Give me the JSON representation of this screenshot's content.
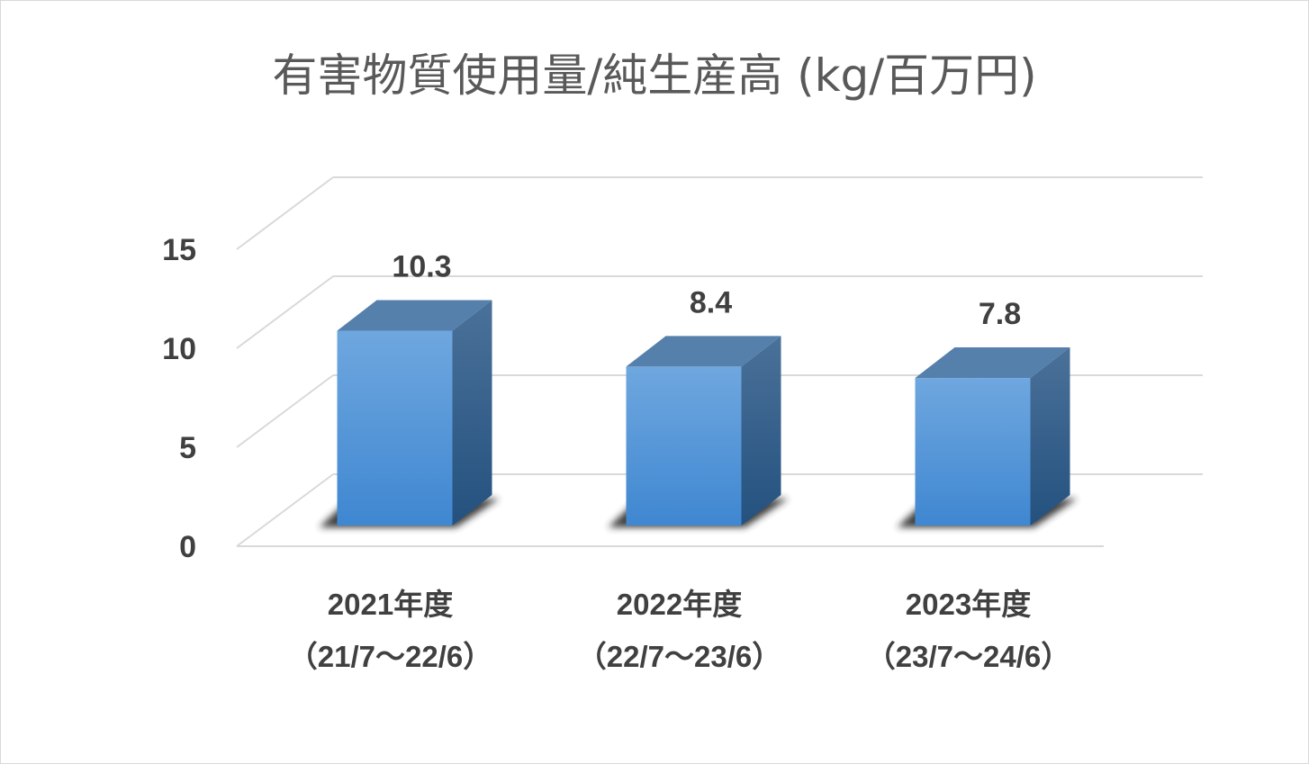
{
  "chart_data": {
    "type": "bar",
    "title": "有害物質使用量/純生産高 (kg/百万円)",
    "categories": [
      [
        "2021年度",
        "（21/7～22/6）"
      ],
      [
        "2022年度",
        "（22/7～23/6）"
      ],
      [
        "2023年度",
        "（23/7～24/6）"
      ]
    ],
    "values": [
      10.3,
      8.4,
      7.8
    ],
    "data_labels": [
      "10.3",
      "8.4",
      "7.8"
    ],
    "ylim": [
      0,
      15
    ],
    "yticks": [
      "0",
      "5",
      "10",
      "15"
    ],
    "xlabel": "",
    "ylabel": "",
    "grid": true,
    "three_d": true,
    "colors": {
      "bar_front_top": "#6fa7df",
      "bar_front_bottom": "#3f87d1",
      "bar_top": "#5580ab",
      "bar_side_top": "#4a7199",
      "bar_side_bottom": "#24517f",
      "shadow": "#2b2b2b",
      "grid": "#d9d9d9",
      "text": "#404040",
      "title": "#595959"
    }
  }
}
